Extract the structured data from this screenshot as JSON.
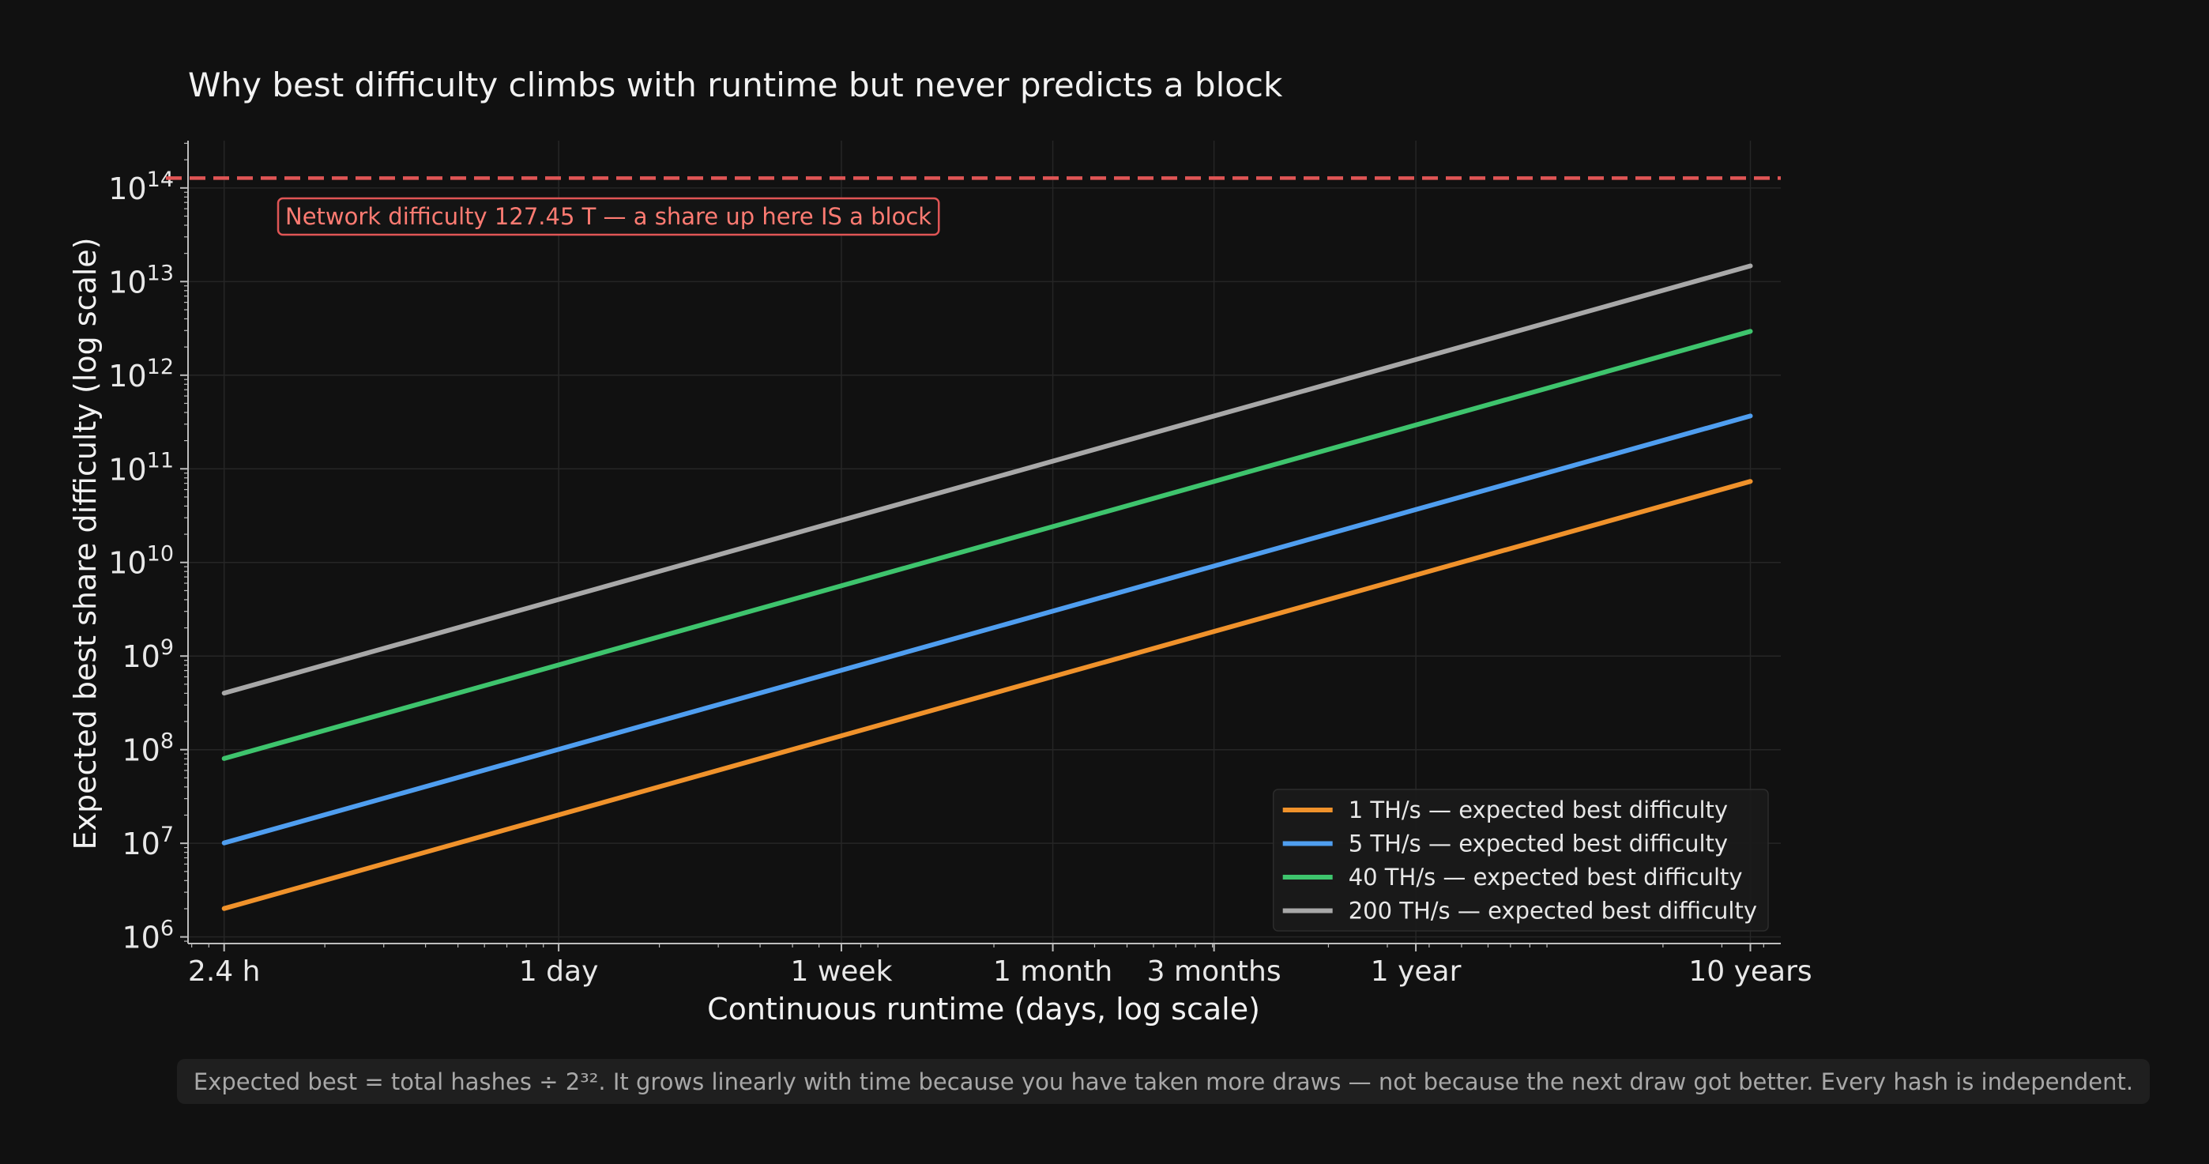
{
  "colors": {
    "background": "#111111",
    "plot_background": "#111111",
    "grid": "#262626",
    "axis": "#bdbdbd",
    "text": "#e8e8e8",
    "network_line": "#e05555",
    "network_label": "#ff7b72",
    "footnote_text": "#a8a8a8",
    "footnote_background": "#1f1f1f",
    "legend_background": "#1a1a1a"
  },
  "chart_data": {
    "type": "line",
    "title": "Why best difficulty climbs with runtime but never predicts a block",
    "xlabel": "Continuous runtime (days, log scale)",
    "ylabel": "Expected best share difficulty (log scale)",
    "x_scale": "log",
    "y_scale": "log",
    "xlim": [
      0.078,
      4500
    ],
    "ylim": [
      850000,
      320000000000000
    ],
    "grid": true,
    "legend_position": "lower right",
    "x_ticks": [
      {
        "value": 0.1,
        "label": "2.4 h"
      },
      {
        "value": 1,
        "label": "1 day"
      },
      {
        "value": 7,
        "label": "1 week"
      },
      {
        "value": 30,
        "label": "1 month"
      },
      {
        "value": 91,
        "label": "3 months"
      },
      {
        "value": 365,
        "label": "1 year"
      },
      {
        "value": 3650,
        "label": "10 years"
      }
    ],
    "y_ticks": [
      {
        "value": 1000000,
        "base": "10",
        "exp": "6"
      },
      {
        "value": 10000000,
        "base": "10",
        "exp": "7"
      },
      {
        "value": 100000000,
        "base": "10",
        "exp": "8"
      },
      {
        "value": 1000000000,
        "base": "10",
        "exp": "9"
      },
      {
        "value": 10000000000,
        "base": "10",
        "exp": "10"
      },
      {
        "value": 100000000000,
        "base": "10",
        "exp": "11"
      },
      {
        "value": 1000000000000,
        "base": "10",
        "exp": "12"
      },
      {
        "value": 10000000000000,
        "base": "10",
        "exp": "13"
      },
      {
        "value": 100000000000000,
        "base": "10",
        "exp": "14"
      }
    ],
    "series": [
      {
        "name": "1 TH/s — expected best difficulty",
        "color": "#f0922b",
        "x": [
          0.1,
          3650
        ],
        "y": [
          2010000,
          73400000000
        ]
      },
      {
        "name": "5 TH/s — expected best difficulty",
        "color": "#4f9ef0",
        "x": [
          0.1,
          3650
        ],
        "y": [
          10100000,
          367000000000
        ]
      },
      {
        "name": "40 TH/s — expected best difficulty",
        "color": "#3ec46d",
        "x": [
          0.1,
          3650
        ],
        "y": [
          80500000,
          2940000000000
        ]
      },
      {
        "name": "200 TH/s — expected best difficulty",
        "color": "#a8a8a8",
        "x": [
          0.1,
          3650
        ],
        "y": [
          402000000,
          14700000000000
        ]
      }
    ],
    "reference_line": {
      "y": 127450000000000,
      "label": "Network difficulty 127.45 T — a share up here IS a block",
      "style": "dashed"
    }
  },
  "footnote": "Expected best = total hashes ÷ 2³². It grows linearly with time because you have taken more draws — not because the next draw got better. Every hash is independent."
}
